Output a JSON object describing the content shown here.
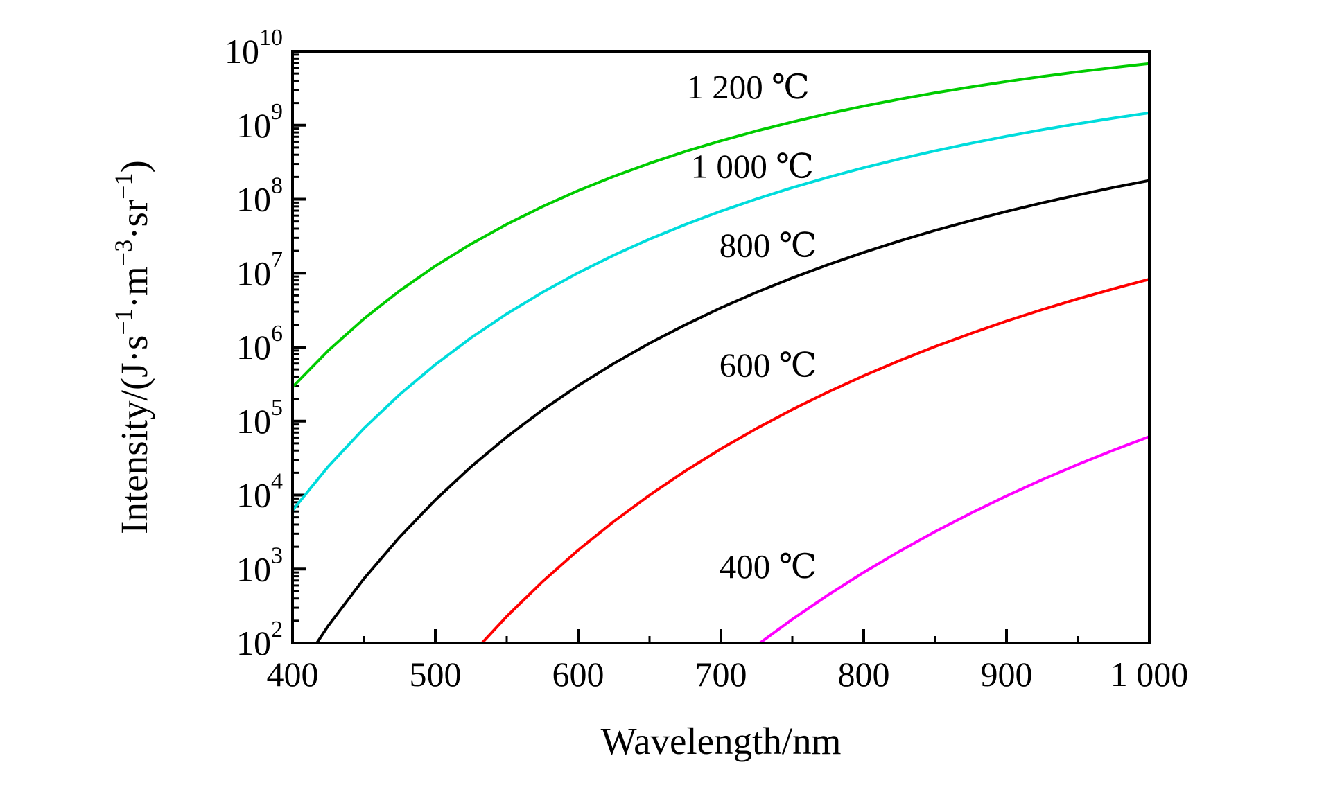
{
  "figure": {
    "background": "#ffffff",
    "frame_color": "#000000"
  },
  "chart_data": {
    "type": "line",
    "title": "",
    "xlabel": "Wavelength/nm",
    "ylabel": "Intensity/(J·s⁻¹·m⁻³·sr⁻¹)",
    "ylabel_parts": [
      {
        "text": "Intensity/(J·s",
        "sup": false
      },
      {
        "text": "−1",
        "sup": true
      },
      {
        "text": "·m",
        "sup": false
      },
      {
        "text": "−3",
        "sup": true
      },
      {
        "text": "·sr",
        "sup": false
      },
      {
        "text": "−1",
        "sup": true
      },
      {
        "text": ")",
        "sup": false
      }
    ],
    "x_axis": {
      "min": 400,
      "max": 1000,
      "major_ticks": [
        {
          "value": 400,
          "label": "400"
        },
        {
          "value": 500,
          "label": "500"
        },
        {
          "value": 600,
          "label": "600"
        },
        {
          "value": 700,
          "label": "700"
        },
        {
          "value": 800,
          "label": "800"
        },
        {
          "value": 900,
          "label": "900"
        },
        {
          "value": 1000,
          "label": "1 000"
        }
      ],
      "minor_step": 50
    },
    "y_axis": {
      "scale": "log10",
      "min_exp": 2,
      "max_exp": 10,
      "tick_base": "10",
      "major_exps": [
        2,
        3,
        4,
        5,
        6,
        7,
        8,
        9,
        10
      ]
    },
    "legend_position": "inline-labels",
    "grid": false,
    "series": [
      {
        "id": "1200c",
        "name": "1 200 ℃",
        "temperature_c": 1200,
        "color": "#00cc00",
        "x": [
          400,
          425,
          450,
          475,
          500,
          525,
          550,
          575,
          600,
          625,
          650,
          675,
          700,
          725,
          750,
          775,
          800,
          825,
          850,
          875,
          900,
          925,
          950,
          975,
          1000
        ],
        "log10y": [
          5.46,
          5.953,
          6.383,
          6.762,
          7.097,
          7.395,
          7.661,
          7.9,
          8.115,
          8.309,
          8.485,
          8.645,
          8.79,
          8.923,
          9.044,
          9.156,
          9.258,
          9.352,
          9.438,
          9.518,
          9.591,
          9.659,
          9.722,
          9.78,
          9.834
        ],
        "label_anchor": {
          "x": 719,
          "log10y": 9.52
        }
      },
      {
        "id": "1000c",
        "name": "1 000 ℃",
        "temperature_c": 1000,
        "color": "#00dcdc",
        "x": [
          400,
          425,
          450,
          475,
          500,
          525,
          550,
          575,
          600,
          625,
          650,
          675,
          700,
          725,
          750,
          775,
          800,
          825,
          850,
          875,
          900,
          925,
          950,
          975,
          1000
        ],
        "log10y": [
          3.794,
          4.385,
          4.902,
          5.359,
          5.764,
          6.126,
          6.45,
          6.741,
          7.004,
          7.243,
          7.46,
          7.657,
          7.838,
          8.004,
          8.156,
          8.296,
          8.425,
          8.544,
          8.654,
          8.756,
          8.851,
          8.939,
          9.02,
          9.096,
          9.167
        ],
        "label_anchor": {
          "x": 722,
          "log10y": 8.45
        }
      },
      {
        "id": "800c",
        "name": "800 ℃",
        "temperature_c": 800,
        "color": "#000000",
        "x": [
          400,
          425,
          450,
          475,
          500,
          525,
          550,
          575,
          600,
          625,
          650,
          675,
          700,
          725,
          750,
          775,
          800,
          825,
          850,
          875,
          900,
          925,
          950,
          975,
          1000
        ],
        "log10y": [
          1.507,
          2.232,
          2.869,
          3.432,
          3.934,
          4.383,
          4.786,
          5.15,
          5.479,
          5.779,
          6.052,
          6.302,
          6.531,
          6.742,
          6.936,
          7.115,
          7.281,
          7.435,
          7.578,
          7.71,
          7.834,
          7.95,
          8.057,
          8.158,
          8.252
        ],
        "label_anchor": {
          "x": 733,
          "log10y": 7.38
        }
      },
      {
        "id": "600c",
        "name": "600 ℃",
        "temperature_c": 600,
        "color": "#ff0000",
        "x": [
          500,
          525,
          550,
          575,
          600,
          625,
          650,
          675,
          700,
          725,
          750,
          775,
          800,
          825,
          850,
          875,
          900,
          925,
          950,
          975,
          1000
        ],
        "log10y": [
          1.265,
          1.841,
          2.36,
          2.829,
          3.255,
          3.644,
          3.999,
          4.325,
          4.625,
          4.901,
          5.157,
          5.393,
          5.613,
          5.817,
          6.008,
          6.185,
          6.352,
          6.507,
          6.653,
          6.789,
          6.918
        ],
        "label_anchor": {
          "x": 733,
          "log10y": 5.76
        }
      },
      {
        "id": "400c",
        "name": "400 ℃",
        "temperature_c": 400,
        "color": "#ff00ff",
        "x": [
          700,
          725,
          750,
          775,
          800,
          825,
          850,
          875,
          900,
          925,
          950,
          975,
          1000
        ],
        "log10y": [
          1.587,
          1.968,
          2.321,
          2.649,
          2.955,
          3.239,
          3.506,
          3.755,
          3.989,
          4.208,
          4.414,
          4.608,
          4.791
        ],
        "label_anchor": {
          "x": 733,
          "log10y": 3.04
        }
      }
    ]
  }
}
